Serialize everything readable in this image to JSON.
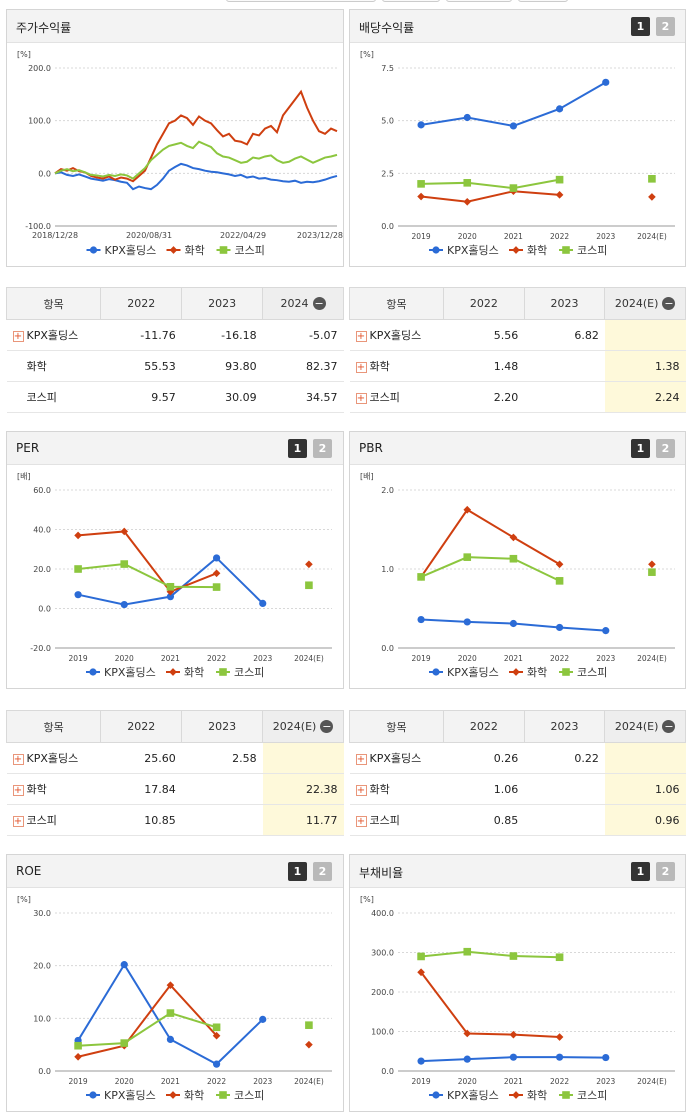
{
  "colors": {
    "kpx": "#2b6bd6",
    "chem": "#cf3f10",
    "kospi": "#8cc63e"
  },
  "legend": [
    "KPX홀딩스",
    "화학",
    "코스피"
  ],
  "panels": {
    "stock": {
      "title": "주가수익률"
    },
    "dividend": {
      "title": "배당수익률"
    },
    "per": {
      "title": "PER"
    },
    "pbr": {
      "title": "PBR"
    },
    "roe": {
      "title": "ROE"
    },
    "debt": {
      "title": "부채비율"
    }
  },
  "pages": [
    "1",
    "2"
  ],
  "chart_data": [
    {
      "id": "stock",
      "type": "line",
      "title": "주가수익률",
      "unit": "[%]",
      "yticks": [
        "200.0",
        "100.0",
        "0.0",
        "-100.0"
      ],
      "ylim": [
        -100,
        200
      ],
      "xticks": [
        "2018/12/28",
        "2020/08/31",
        "2022/04/29",
        "2023/12/28"
      ],
      "series": [
        {
          "name": "KPX홀딩스",
          "values": [
            0,
            2,
            -3,
            -5,
            -2,
            -6,
            -10,
            -12,
            -14,
            -11,
            -13,
            -16,
            -18,
            -30,
            -25,
            -28,
            -30,
            -22,
            -10,
            5,
            12,
            18,
            15,
            10,
            8,
            5,
            3,
            2,
            0,
            -2,
            -5,
            -3,
            -8,
            -6,
            -10,
            -9,
            -12,
            -13,
            -15,
            -16,
            -14,
            -18,
            -16,
            -17,
            -15,
            -12,
            -8,
            -5
          ]
        },
        {
          "name": "화학",
          "values": [
            0,
            8,
            5,
            10,
            4,
            2,
            -5,
            -8,
            -10,
            -6,
            -12,
            -8,
            -10,
            -15,
            -5,
            5,
            30,
            55,
            75,
            95,
            100,
            110,
            105,
            92,
            108,
            100,
            95,
            82,
            70,
            75,
            62,
            60,
            55,
            75,
            72,
            85,
            90,
            78,
            110,
            125,
            140,
            155,
            125,
            100,
            80,
            75,
            85,
            80
          ]
        },
        {
          "name": "코스피",
          "values": [
            0,
            5,
            8,
            4,
            6,
            2,
            -3,
            -4,
            -6,
            -3,
            -5,
            -2,
            -4,
            -10,
            0,
            10,
            25,
            35,
            45,
            52,
            55,
            58,
            52,
            48,
            60,
            55,
            50,
            38,
            32,
            30,
            25,
            20,
            22,
            30,
            28,
            32,
            34,
            25,
            20,
            22,
            28,
            32,
            26,
            20,
            25,
            30,
            32,
            35
          ]
        }
      ]
    },
    {
      "id": "dividend",
      "type": "line",
      "title": "배당수익률",
      "unit": "[%]",
      "yticks": [
        "7.5",
        "5.0",
        "2.5",
        "0.0"
      ],
      "ylim": [
        0,
        7.5
      ],
      "categories": [
        "2019",
        "2020",
        "2021",
        "2022",
        "2023",
        "2024(E)"
      ],
      "series": [
        {
          "name": "KPX홀딩스",
          "values": [
            4.8,
            5.15,
            4.75,
            5.56,
            6.82,
            null
          ]
        },
        {
          "name": "화학",
          "values": [
            1.4,
            1.15,
            1.65,
            1.48,
            null,
            1.38
          ]
        },
        {
          "name": "코스피",
          "values": [
            2.0,
            2.05,
            1.8,
            2.2,
            null,
            2.24
          ]
        }
      ]
    },
    {
      "id": "per",
      "type": "line",
      "title": "PER",
      "unit": "[배]",
      "yticks": [
        "60.0",
        "40.0",
        "20.0",
        "0.0",
        "-20.0"
      ],
      "ylim": [
        -20,
        60
      ],
      "categories": [
        "2019",
        "2020",
        "2021",
        "2022",
        "2023",
        "2024(E)"
      ],
      "series": [
        {
          "name": "KPX홀딩스",
          "values": [
            7.0,
            2.0,
            6.0,
            25.6,
            2.58,
            null
          ]
        },
        {
          "name": "화학",
          "values": [
            37.0,
            39.0,
            8.5,
            17.84,
            null,
            22.38
          ]
        },
        {
          "name": "코스피",
          "values": [
            20.0,
            22.5,
            11.0,
            10.85,
            null,
            11.77
          ]
        }
      ]
    },
    {
      "id": "pbr",
      "type": "line",
      "title": "PBR",
      "unit": "[배]",
      "yticks": [
        "2.0",
        "1.0",
        "0.0"
      ],
      "ylim": [
        0,
        2
      ],
      "categories": [
        "2019",
        "2020",
        "2021",
        "2022",
        "2023",
        "2024(E)"
      ],
      "series": [
        {
          "name": "KPX홀딩스",
          "values": [
            0.36,
            0.33,
            0.31,
            0.26,
            0.22,
            null
          ]
        },
        {
          "name": "화학",
          "values": [
            0.9,
            1.75,
            1.4,
            1.06,
            null,
            1.06
          ]
        },
        {
          "name": "코스피",
          "values": [
            0.9,
            1.15,
            1.13,
            0.85,
            null,
            0.96
          ]
        }
      ]
    },
    {
      "id": "roe",
      "type": "line",
      "title": "ROE",
      "unit": "[%]",
      "yticks": [
        "30.0",
        "20.0",
        "10.0",
        "0.0"
      ],
      "ylim": [
        0,
        30
      ],
      "categories": [
        "2019",
        "2020",
        "2021",
        "2022",
        "2023",
        "2024(E)"
      ],
      "series": [
        {
          "name": "KPX홀딩스",
          "values": [
            5.8,
            20.2,
            6.0,
            1.3,
            9.8,
            null
          ]
        },
        {
          "name": "화학",
          "values": [
            2.7,
            4.8,
            16.3,
            6.7,
            null,
            5.0
          ]
        },
        {
          "name": "코스피",
          "values": [
            4.8,
            5.3,
            11.0,
            8.3,
            null,
            8.7
          ]
        }
      ]
    },
    {
      "id": "debt",
      "type": "line",
      "title": "부채비율",
      "unit": "[%]",
      "yticks": [
        "400.0",
        "300.0",
        "200.0",
        "100.0",
        "0.0"
      ],
      "ylim": [
        0,
        400
      ],
      "categories": [
        "2019",
        "2020",
        "2021",
        "2022",
        "2023",
        "2024(E)"
      ],
      "series": [
        {
          "name": "KPX홀딩스",
          "values": [
            25,
            30,
            35,
            35,
            34,
            null
          ]
        },
        {
          "name": "화학",
          "values": [
            250,
            95,
            92,
            86,
            null,
            null
          ]
        },
        {
          "name": "코스피",
          "values": [
            290,
            302,
            291,
            288,
            null,
            null
          ]
        }
      ]
    }
  ],
  "tables": {
    "stock": {
      "header": [
        "항목",
        "2022",
        "2023",
        "2024"
      ],
      "rows": [
        {
          "name": "KPX홀딩스",
          "plus": true,
          "values": [
            "-11.76",
            "-16.18",
            "-5.07"
          ]
        },
        {
          "name": "화학",
          "plus": false,
          "values": [
            "55.53",
            "93.80",
            "82.37"
          ]
        },
        {
          "name": "코스피",
          "plus": false,
          "values": [
            "9.57",
            "30.09",
            "34.57"
          ]
        }
      ]
    },
    "dividend": {
      "header": [
        "항목",
        "2022",
        "2023",
        "2024(E)"
      ],
      "rows": [
        {
          "name": "KPX홀딩스",
          "plus": true,
          "values": [
            "5.56",
            "6.82",
            ""
          ]
        },
        {
          "name": "화학",
          "plus": true,
          "values": [
            "1.48",
            "",
            "1.38"
          ]
        },
        {
          "name": "코스피",
          "plus": true,
          "values": [
            "2.20",
            "",
            "2.24"
          ]
        }
      ]
    },
    "per": {
      "header": [
        "항목",
        "2022",
        "2023",
        "2024(E)"
      ],
      "rows": [
        {
          "name": "KPX홀딩스",
          "plus": true,
          "values": [
            "25.60",
            "2.58",
            ""
          ]
        },
        {
          "name": "화학",
          "plus": true,
          "values": [
            "17.84",
            "",
            "22.38"
          ]
        },
        {
          "name": "코스피",
          "plus": true,
          "values": [
            "10.85",
            "",
            "11.77"
          ]
        }
      ]
    },
    "pbr": {
      "header": [
        "항목",
        "2022",
        "2023",
        "2024(E)"
      ],
      "rows": [
        {
          "name": "KPX홀딩스",
          "plus": true,
          "values": [
            "0.26",
            "0.22",
            ""
          ]
        },
        {
          "name": "화학",
          "plus": true,
          "values": [
            "1.06",
            "",
            "1.06"
          ]
        },
        {
          "name": "코스피",
          "plus": true,
          "values": [
            "0.85",
            "",
            "0.96"
          ]
        }
      ]
    }
  }
}
